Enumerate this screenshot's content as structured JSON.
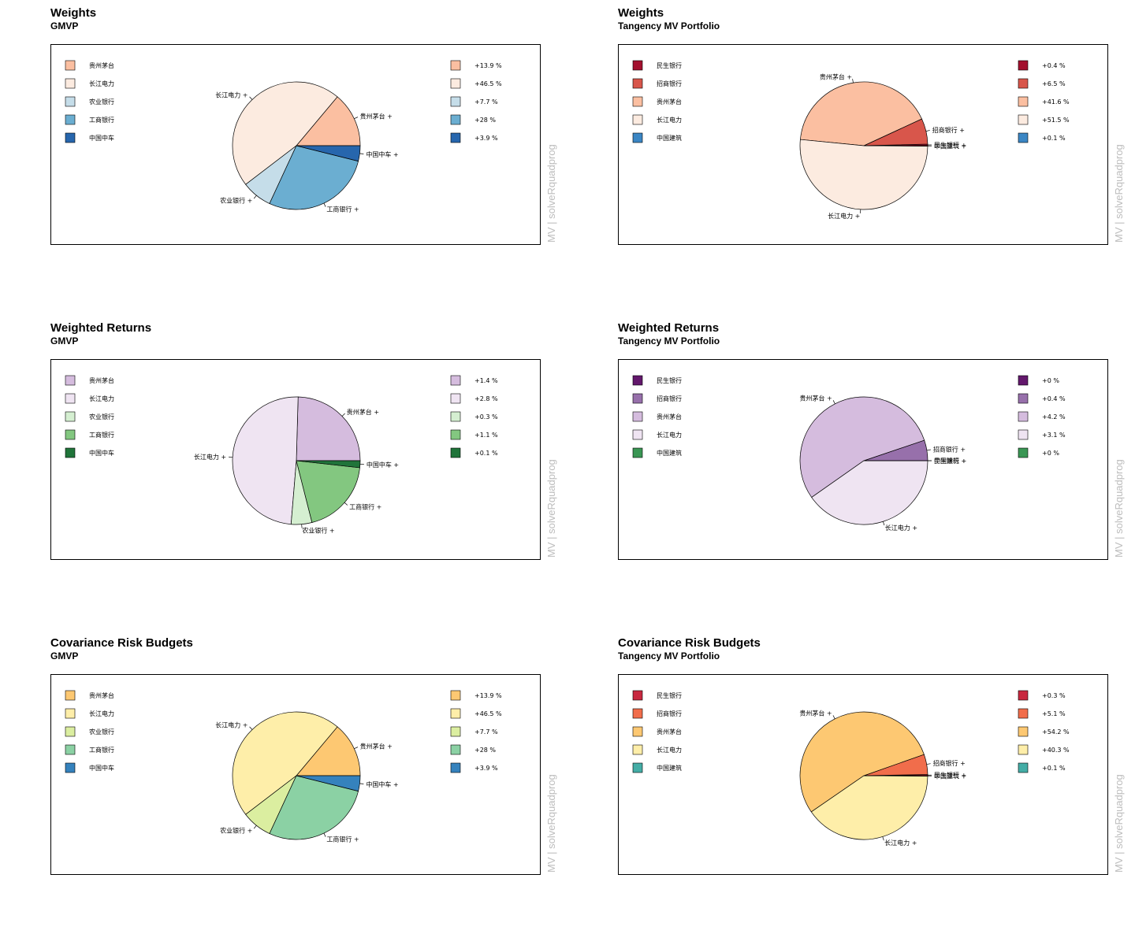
{
  "watermark": "MV | solveRquadprog",
  "chart_data": [
    {
      "type": "pie",
      "title": "Weights",
      "subtitle": "GMVP",
      "slices": [
        {
          "label": "贵州茅台",
          "value": 13.9,
          "value_label": "+13.9 %",
          "color": "#fbbfa1"
        },
        {
          "label": "长江电力",
          "value": 46.5,
          "value_label": "+46.5 %",
          "color": "#fcebe0"
        },
        {
          "label": "农业银行",
          "value": 7.7,
          "value_label": "+7.7 %",
          "color": "#c5dde9"
        },
        {
          "label": "工商银行",
          "value": 28,
          "value_label": "+28 %",
          "color": "#6baed1"
        },
        {
          "label": "中国中车",
          "value": 3.9,
          "value_label": "+3.9 %",
          "color": "#2766ad"
        }
      ]
    },
    {
      "type": "pie",
      "title": "Weights",
      "subtitle": "Tangency MV Portfolio",
      "slices": [
        {
          "label": "民生银行",
          "value": 0.4,
          "value_label": "+0.4 %",
          "color": "#a3102e"
        },
        {
          "label": "招商银行",
          "value": 6.5,
          "value_label": "+6.5 %",
          "color": "#d8564b"
        },
        {
          "label": "贵州茅台",
          "value": 41.6,
          "value_label": "+41.6 %",
          "color": "#fbbfa1"
        },
        {
          "label": "长江电力",
          "value": 51.5,
          "value_label": "+51.5 %",
          "color": "#fcebe0"
        },
        {
          "label": "中国建筑",
          "value": 0.1,
          "value_label": "+0.1 %",
          "color": "#3b86c4"
        }
      ]
    },
    {
      "type": "pie",
      "title": "Weighted Returns",
      "subtitle": "GMVP",
      "slices": [
        {
          "label": "贵州茅台",
          "value": 1.4,
          "value_label": "+1.4 %",
          "color": "#d5bcde"
        },
        {
          "label": "长江电力",
          "value": 2.8,
          "value_label": "+2.8 %",
          "color": "#efe4f2"
        },
        {
          "label": "农业银行",
          "value": 0.3,
          "value_label": "+0.3 %",
          "color": "#d5efd1"
        },
        {
          "label": "工商银行",
          "value": 1.1,
          "value_label": "+1.1 %",
          "color": "#83c780"
        },
        {
          "label": "中国中车",
          "value": 0.1,
          "value_label": "+0.1 %",
          "color": "#20743a"
        }
      ]
    },
    {
      "type": "pie",
      "title": "Weighted Returns",
      "subtitle": "Tangency MV Portfolio",
      "slices": [
        {
          "label": "民生银行",
          "value": 0.0,
          "value_label": "+0 %",
          "color": "#63186c"
        },
        {
          "label": "招商银行",
          "value": 0.4,
          "value_label": "+0.4 %",
          "color": "#9770ab"
        },
        {
          "label": "贵州茅台",
          "value": 4.2,
          "value_label": "+4.2 %",
          "color": "#d5bcde"
        },
        {
          "label": "长江电力",
          "value": 3.1,
          "value_label": "+3.1 %",
          "color": "#efe4f2"
        },
        {
          "label": "中国建筑",
          "value": 0.0,
          "value_label": "+0 %",
          "color": "#3a9654"
        }
      ]
    },
    {
      "type": "pie",
      "title": "Covariance Risk Budgets",
      "subtitle": "GMVP",
      "slices": [
        {
          "label": "贵州茅台",
          "value": 13.9,
          "value_label": "+13.9 %",
          "color": "#fdc872"
        },
        {
          "label": "长江电力",
          "value": 46.5,
          "value_label": "+46.5 %",
          "color": "#feeea9"
        },
        {
          "label": "农业银行",
          "value": 7.7,
          "value_label": "+7.7 %",
          "color": "#dbeea0"
        },
        {
          "label": "工商银行",
          "value": 28,
          "value_label": "+28 %",
          "color": "#8bd1a4"
        },
        {
          "label": "中国中车",
          "value": 3.9,
          "value_label": "+3.9 %",
          "color": "#3582bd"
        }
      ]
    },
    {
      "type": "pie",
      "title": "Covariance Risk Budgets",
      "subtitle": "Tangency MV Portfolio",
      "slices": [
        {
          "label": "民生银行",
          "value": 0.3,
          "value_label": "+0.3 %",
          "color": "#c8283f"
        },
        {
          "label": "招商银行",
          "value": 5.1,
          "value_label": "+5.1 %",
          "color": "#f16d4b"
        },
        {
          "label": "贵州茅台",
          "value": 54.2,
          "value_label": "+54.2 %",
          "color": "#fdc872"
        },
        {
          "label": "长江电力",
          "value": 40.3,
          "value_label": "+40.3 %",
          "color": "#feeea9"
        },
        {
          "label": "中国建筑",
          "value": 0.1,
          "value_label": "+0.1 %",
          "color": "#44ada6"
        }
      ]
    }
  ]
}
